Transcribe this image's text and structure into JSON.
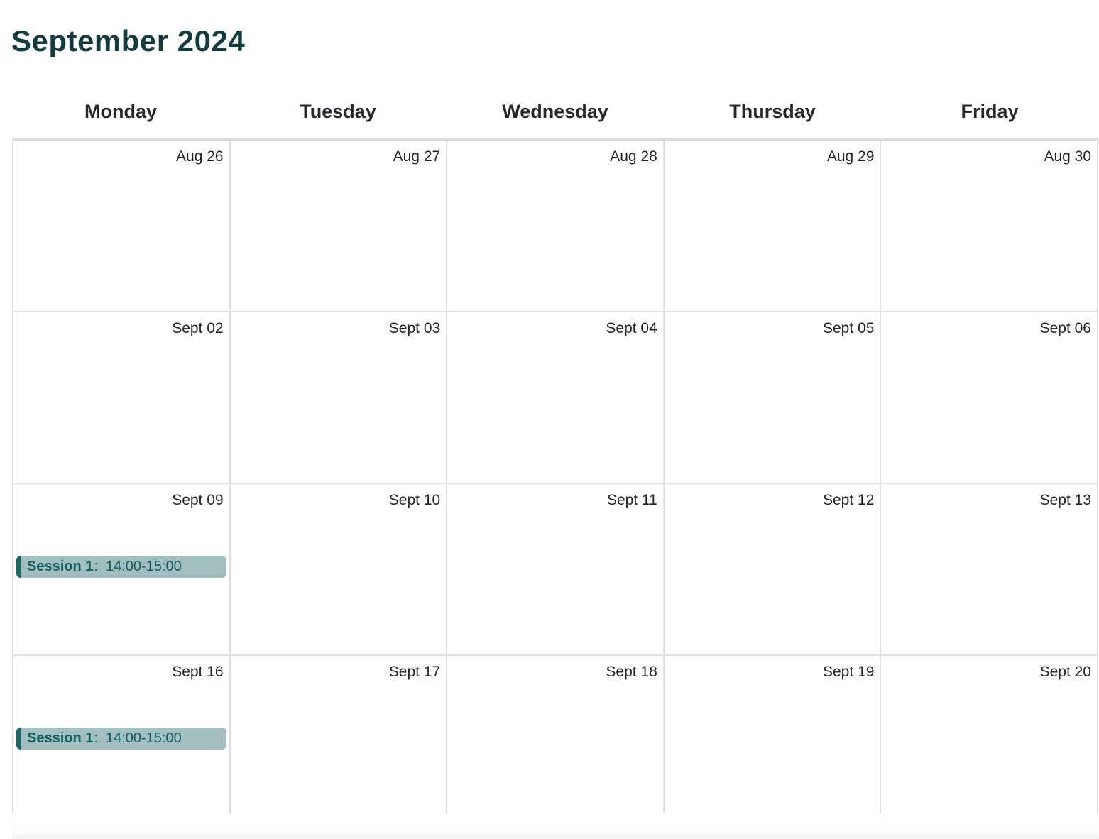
{
  "page_title": "September 2024",
  "weekday_headers": [
    "Monday",
    "Tuesday",
    "Wednesday",
    "Thursday",
    "Friday"
  ],
  "weeks": [
    {
      "days": [
        {
          "date": "Aug 26"
        },
        {
          "date": "Aug 27"
        },
        {
          "date": "Aug 28"
        },
        {
          "date": "Aug 29"
        },
        {
          "date": "Aug 30"
        }
      ]
    },
    {
      "days": [
        {
          "date": "Sept 02"
        },
        {
          "date": "Sept 03"
        },
        {
          "date": "Sept 04"
        },
        {
          "date": "Sept 05"
        },
        {
          "date": "Sept 06"
        }
      ]
    },
    {
      "days": [
        {
          "date": "Sept 09",
          "event": {
            "title": "Session 1",
            "separator": ":",
            "time": "14:00-15:00"
          }
        },
        {
          "date": "Sept 10"
        },
        {
          "date": "Sept 11"
        },
        {
          "date": "Sept 12"
        },
        {
          "date": "Sept 13"
        }
      ]
    },
    {
      "days": [
        {
          "date": "Sept 16",
          "event": {
            "title": "Session 1",
            "separator": ":",
            "time": "14:00-15:00"
          }
        },
        {
          "date": "Sept 17"
        },
        {
          "date": "Sept 18"
        },
        {
          "date": "Sept 19"
        },
        {
          "date": "Sept 20"
        }
      ]
    }
  ],
  "colors": {
    "title_text": "#143b40",
    "header_text": "#26292c",
    "date_text": "#212528",
    "grid_border": "#e0e0e0",
    "grid_top_border": "#dcdcdc",
    "cell_bg": "#ffffff",
    "event_bg": "#a2bebe",
    "event_bar": "#166869",
    "event_text": "#10605f"
  }
}
